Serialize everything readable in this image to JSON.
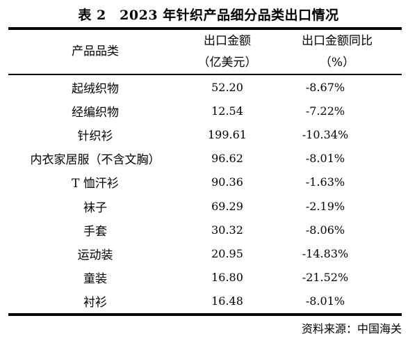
{
  "page": {
    "background": "#ffffff",
    "text_color": "#000000",
    "rule_color": "#000000"
  },
  "title": "表 2　2023 年针织产品细分品类出口情况",
  "table": {
    "header": {
      "category": "产品品类",
      "amount_line1": "出口金额",
      "amount_line2": "（亿美元）",
      "yoy_line1": "出口金额同比",
      "yoy_line2": "（%）"
    },
    "rows": [
      {
        "category": "起绒织物",
        "amount": "52.20",
        "yoy": "-8.67%"
      },
      {
        "category": "经编织物",
        "amount": "12.54",
        "yoy": "-7.22%"
      },
      {
        "category": "针织衫",
        "amount": "199.61",
        "yoy": "-10.34%"
      },
      {
        "category": "内衣家居服（不含文胸）",
        "amount": "96.62",
        "yoy": "-8.01%"
      },
      {
        "category": "T 恤汗衫",
        "amount": "90.36",
        "yoy": "-1.63%"
      },
      {
        "category": "袜子",
        "amount": "69.29",
        "yoy": "-2.19%"
      },
      {
        "category": "手套",
        "amount": "30.32",
        "yoy": "-8.06%"
      },
      {
        "category": "运动装",
        "amount": "20.95",
        "yoy": "-14.83%"
      },
      {
        "category": "童装",
        "amount": "16.80",
        "yoy": "-21.52%"
      },
      {
        "category": "衬衫",
        "amount": "16.48",
        "yoy": "-8.01%"
      }
    ]
  },
  "source_note": "资料来源：中国海关",
  "chart_data": {
    "type": "table",
    "title": "表 2 2023 年针织产品细分品类出口情况",
    "columns": [
      "产品品类",
      "出口金额（亿美元）",
      "出口金额同比（%）"
    ],
    "rows": [
      [
        "起绒织物",
        52.2,
        -8.67
      ],
      [
        "经编织物",
        12.54,
        -7.22
      ],
      [
        "针织衫",
        199.61,
        -10.34
      ],
      [
        "内衣家居服（不含文胸）",
        96.62,
        -8.01
      ],
      [
        "T 恤汗衫",
        90.36,
        -1.63
      ],
      [
        "袜子",
        69.29,
        -2.19
      ],
      [
        "手套",
        30.32,
        -8.06
      ],
      [
        "运动装",
        20.95,
        -14.83
      ],
      [
        "童装",
        16.8,
        -21.52
      ],
      [
        "衬衫",
        16.48,
        -8.01
      ]
    ],
    "source": "中国海关"
  }
}
